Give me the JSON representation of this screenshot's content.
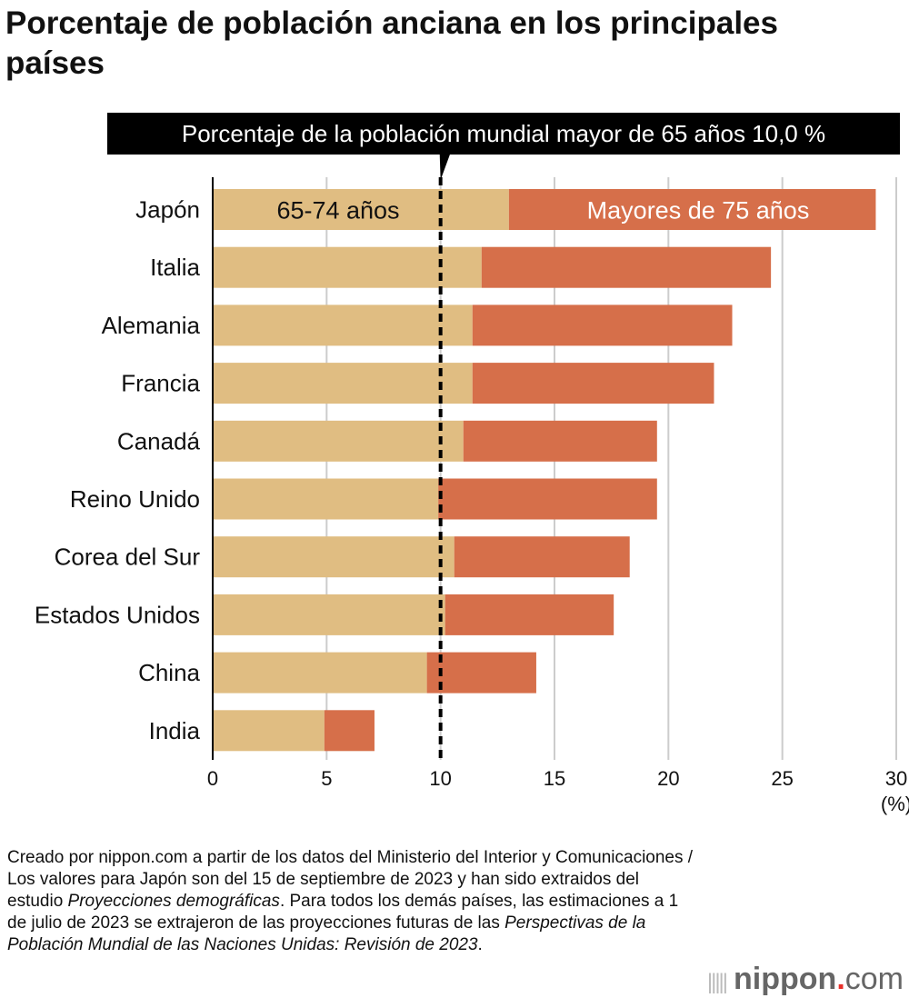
{
  "chart_data": {
    "type": "bar",
    "stacked": true,
    "orientation": "horizontal",
    "title": "Porcentaje de población anciana en los principales países",
    "categories": [
      "Japón",
      "Italia",
      "Alemania",
      "Francia",
      "Canadá",
      "Reino Unido",
      "Corea del Sur",
      "Estados Unidos",
      "China",
      "India"
    ],
    "series": [
      {
        "name": "65-74 años",
        "color": "#e0bd82",
        "values": [
          13.0,
          11.8,
          11.4,
          11.4,
          11.0,
          9.9,
          10.6,
          10.2,
          9.4,
          4.9
        ]
      },
      {
        "name": "Mayores de 75 años",
        "color": "#d66f4a",
        "values": [
          16.1,
          12.7,
          11.4,
          10.6,
          8.5,
          9.6,
          7.7,
          7.4,
          4.8,
          2.2
        ]
      }
    ],
    "xlim": [
      0,
      30
    ],
    "xticks": [
      "0",
      "5",
      "10",
      "15",
      "20",
      "25",
      "30"
    ],
    "xunit": "(%)",
    "grid": true,
    "reference_line": {
      "value": 10.0,
      "label": "Porcentaje de la población mundial mayor de 65 años 10,0 %"
    }
  },
  "notes": {
    "line1": "Creado por nippon.com a partir de los datos del Ministerio del Interior y Comunicaciones / Los valores para Japón son del 15 de septiembre de 2023 y han sido extraidos del estudio ",
    "italic1": "Proyecciones demográficas",
    "line2": ". Para todos los demás países, las estimaciones a 1 de julio de 2023 se extrajeron de las proyecciones futuras de las ",
    "italic2": "Perspectivas de la Población Mundial de las Naciones Unidas: Revisión de 2023",
    "line3": "."
  },
  "logo": {
    "name": "nippon",
    "dot": ".",
    "com": "com"
  }
}
